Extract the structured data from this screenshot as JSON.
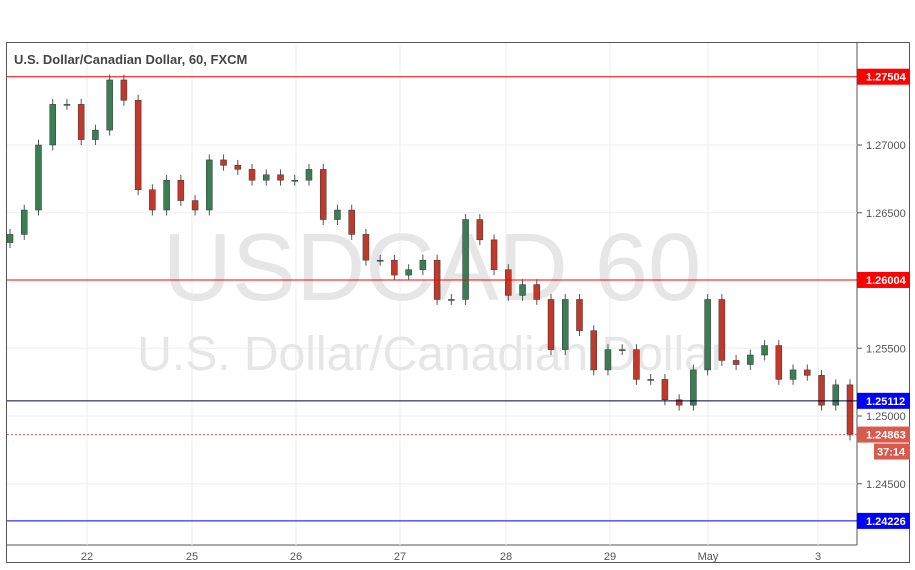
{
  "chart_data": {
    "type": "candlestick",
    "title": "U.S. Dollar/Canadian Dollar, 60, FXCM",
    "watermark": [
      "USDCAD  60",
      "U.S. Dollar/Canadian Dollar"
    ],
    "x_ticks": [
      "22",
      "25",
      "26",
      "27",
      "28",
      "29",
      "May",
      "3"
    ],
    "y_ticks": [
      "1.27000",
      "1.26500",
      "1.25500",
      "1.25000",
      "1.24500"
    ],
    "ylim": [
      1.2415,
      1.277
    ],
    "grid": true,
    "first_open": 1.2628,
    "closes": [
      1.2634,
      1.2652,
      1.27,
      1.273,
      1.273,
      1.2704,
      1.2711,
      1.2748,
      1.2733,
      1.2667,
      1.2652,
      1.2674,
      1.2659,
      1.2652,
      1.2689,
      1.2685,
      1.2682,
      1.2674,
      1.2678,
      1.2674,
      1.2674,
      1.2682,
      1.2645,
      1.2652,
      1.2634,
      1.2615,
      1.2615,
      1.2604,
      1.2608,
      1.2615,
      1.2586,
      1.2586,
      1.2645,
      1.263,
      1.2608,
      1.2589,
      1.2597,
      1.2586,
      1.2549,
      1.2586,
      1.2563,
      1.2534,
      1.2549,
      1.2549,
      1.2527,
      1.2527,
      1.2512,
      1.2508,
      1.2534,
      1.2586,
      1.2541,
      1.2538,
      1.2545,
      1.2552,
      1.2527,
      1.2534,
      1.253,
      1.2508,
      1.2523,
      1.2486
    ],
    "levels": [
      {
        "value": 1.27504,
        "label": "1.27504",
        "line": "#ff0000",
        "bg": "#ff0000"
      },
      {
        "value": 1.26004,
        "label": "1.26004",
        "line": "#ff0000",
        "bg": "#ff0000"
      },
      {
        "value": 1.25112,
        "label": "1.25112",
        "line": "#000033",
        "bg": "#0000ff"
      },
      {
        "value": 1.24226,
        "label": "1.24226",
        "line": "#0000ff",
        "bg": "#0000ff"
      }
    ],
    "current": {
      "value": 1.24863,
      "label": "1.24863",
      "countdown": "37:14",
      "color": "#d9594c"
    },
    "colors": {
      "up": "#3b7d55",
      "down": "#c0392b"
    }
  }
}
